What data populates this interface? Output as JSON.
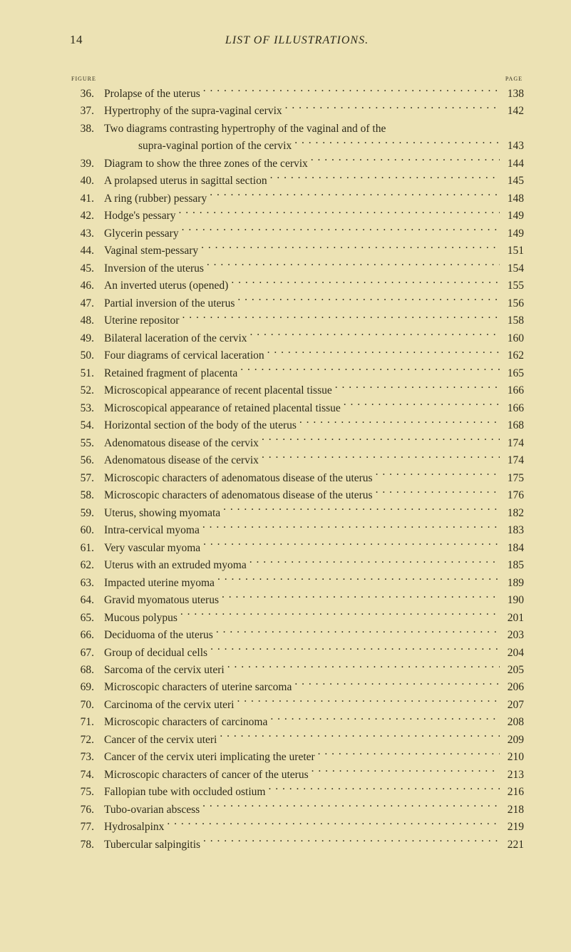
{
  "page": {
    "header_page_number": "14",
    "header_title": "LIST OF ILLUSTRATIONS.",
    "col_figure": "figure",
    "col_page": "page",
    "background_color": "#ece2b4",
    "text_color": "#2d2a1a",
    "font_family": "Times New Roman",
    "base_fontsize_pt": 12,
    "line_height": 1.58
  },
  "entries": [
    {
      "n": "36.",
      "t": "Prolapse of the uterus",
      "p": "138"
    },
    {
      "n": "37.",
      "t": "Hypertrophy of the supra-vaginal cervix",
      "p": "142"
    },
    {
      "n": "38.",
      "t1": "Two diagrams contrasting hypertrophy of the vaginal and of the",
      "t2": "supra-vaginal portion of the cervix",
      "p": "143",
      "twoLine": true
    },
    {
      "n": "39.",
      "t": "Diagram to show the three zones of the cervix",
      "p": "144"
    },
    {
      "n": "40.",
      "t": "A prolapsed uterus in sagittal section",
      "p": "145"
    },
    {
      "n": "41.",
      "t": "A ring (rubber) pessary",
      "p": "148"
    },
    {
      "n": "42.",
      "t": "Hodge's pessary",
      "p": "149"
    },
    {
      "n": "43.",
      "t": "Glycerin pessary",
      "p": "149"
    },
    {
      "n": "44.",
      "t": "Vaginal stem-pessary",
      "p": "151"
    },
    {
      "n": "45.",
      "t": "Inversion of the uterus",
      "p": "154"
    },
    {
      "n": "46.",
      "t": "An inverted uterus (opened)",
      "p": "155"
    },
    {
      "n": "47.",
      "t": "Partial inversion of the uterus",
      "p": "156"
    },
    {
      "n": "48.",
      "t": "Uterine repositor",
      "p": "158"
    },
    {
      "n": "49.",
      "t": "Bilateral laceration of the cervix",
      "p": "160"
    },
    {
      "n": "50.",
      "t": "Four diagrams of cervical laceration",
      "p": "162"
    },
    {
      "n": "51.",
      "t": "Retained fragment of placenta",
      "p": "165"
    },
    {
      "n": "52.",
      "t": "Microscopical appearance of recent placental tissue",
      "p": "166"
    },
    {
      "n": "53.",
      "t": "Microscopical appearance of retained placental tissue",
      "p": "166"
    },
    {
      "n": "54.",
      "t": "Horizontal section of the body of the uterus",
      "p": "168"
    },
    {
      "n": "55.",
      "t": "Adenomatous disease of the cervix",
      "p": "174"
    },
    {
      "n": "56.",
      "t": "Adenomatous disease of the cervix",
      "p": "174"
    },
    {
      "n": "57.",
      "t": "Microscopic characters of adenomatous disease of the uterus",
      "p": "175"
    },
    {
      "n": "58.",
      "t": "Microscopic characters of adenomatous disease of the uterus",
      "p": "176"
    },
    {
      "n": "59.",
      "t": "Uterus, showing myomata",
      "p": "182"
    },
    {
      "n": "60.",
      "t": "Intra-cervical myoma",
      "p": "183"
    },
    {
      "n": "61.",
      "t": "Very vascular myoma",
      "p": "184"
    },
    {
      "n": "62.",
      "t": "Uterus with an extruded myoma",
      "p": "185"
    },
    {
      "n": "63.",
      "t": "Impacted uterine myoma",
      "p": "189"
    },
    {
      "n": "64.",
      "t": "Gravid myomatous uterus",
      "p": "190"
    },
    {
      "n": "65.",
      "t": "Mucous polypus",
      "p": "201"
    },
    {
      "n": "66.",
      "t": "Deciduoma of the uterus",
      "p": "203"
    },
    {
      "n": "67.",
      "t": "Group of decidual cells",
      "p": "204"
    },
    {
      "n": "68.",
      "t": "Sarcoma of the cervix uteri",
      "p": "205"
    },
    {
      "n": "69.",
      "t": "Microscopic characters of uterine sarcoma",
      "p": "206"
    },
    {
      "n": "70.",
      "t": "Carcinoma of the cervix uteri",
      "p": "207"
    },
    {
      "n": "71.",
      "t": "Microscopic characters of carcinoma",
      "p": "208"
    },
    {
      "n": "72.",
      "t": "Cancer of the cervix uteri",
      "p": "209"
    },
    {
      "n": "73.",
      "t": "Cancer of the cervix uteri implicating the ureter",
      "p": "210"
    },
    {
      "n": "74.",
      "t": "Microscopic characters of cancer of the uterus",
      "p": "213"
    },
    {
      "n": "75.",
      "t": "Fallopian tube with occluded ostium",
      "p": "216"
    },
    {
      "n": "76.",
      "t": "Tubo-ovarian abscess",
      "p": "218"
    },
    {
      "n": "77.",
      "t": "Hydrosalpinx",
      "p": "219"
    },
    {
      "n": "78.",
      "t": "Tubercular salpingitis",
      "p": "221"
    }
  ]
}
